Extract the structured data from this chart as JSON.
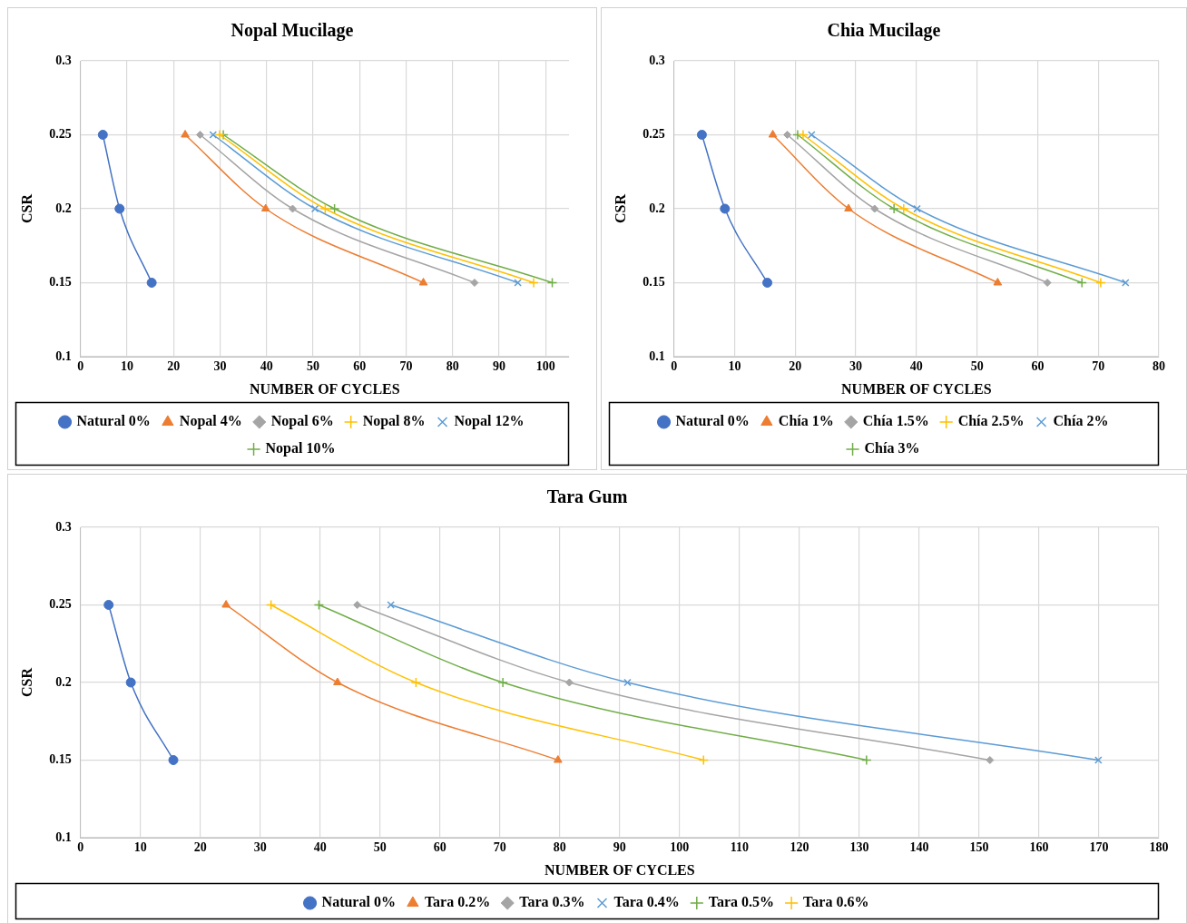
{
  "chart_data": [
    {
      "type": "line",
      "title": "Nopal Mucilage",
      "xlabel": "NUMBER OF CYCLES",
      "ylabel": "CSR",
      "xlim": [
        0,
        105
      ],
      "xticks": [
        0,
        10,
        20,
        30,
        40,
        50,
        60,
        70,
        80,
        90,
        100
      ],
      "ylim": [
        0.1,
        0.3
      ],
      "yticks": [
        0.1,
        0.15,
        0.2,
        0.25,
        0.3
      ],
      "grid": true,
      "legend": "bottom",
      "series": [
        {
          "name": "Natural 0%",
          "color": "#4472c4",
          "marker": "circle",
          "x": [
            4.8,
            8.4,
            15.3
          ],
          "values": [
            0.25,
            0.2,
            0.15
          ]
        },
        {
          "name": "Nopal 4%",
          "color": "#ed7d31",
          "marker": "triangle",
          "x": [
            22.5,
            39.8,
            73.7
          ],
          "values": [
            0.25,
            0.2,
            0.15
          ]
        },
        {
          "name": "Nopal 6%",
          "color": "#a5a5a5",
          "marker": "diamond",
          "x": [
            25.7,
            45.6,
            84.7
          ],
          "values": [
            0.25,
            0.2,
            0.15
          ]
        },
        {
          "name": "Nopal 8%",
          "color": "#ffc000",
          "marker": "cross",
          "x": [
            29.9,
            52.6,
            97.4
          ],
          "values": [
            0.25,
            0.2,
            0.15
          ]
        },
        {
          "name": "Nopal 12%",
          "color": "#5b9bd5",
          "marker": "x",
          "x": [
            28.5,
            50.4,
            94
          ],
          "values": [
            0.25,
            0.2,
            0.15
          ]
        },
        {
          "name": "Nopal 10%",
          "color": "#70ad47",
          "marker": "cross",
          "x": [
            30.7,
            54.6,
            101.4
          ],
          "values": [
            0.25,
            0.2,
            0.15
          ]
        }
      ]
    },
    {
      "type": "line",
      "title": "Chia Mucilage",
      "xlabel": "NUMBER OF CYCLES",
      "ylabel": "CSR",
      "xlim": [
        0,
        80
      ],
      "xticks": [
        0,
        10,
        20,
        30,
        40,
        50,
        60,
        70,
        80
      ],
      "ylim": [
        0.1,
        0.3
      ],
      "yticks": [
        0.1,
        0.15,
        0.2,
        0.25,
        0.3
      ],
      "grid": true,
      "legend": "bottom",
      "series": [
        {
          "name": "Natural 0%",
          "color": "#4472c4",
          "marker": "circle",
          "x": [
            4.6,
            8.4,
            15.4
          ],
          "values": [
            0.25,
            0.2,
            0.15
          ]
        },
        {
          "name": "Chía 1%",
          "color": "#ed7d31",
          "marker": "triangle",
          "x": [
            16.3,
            28.8,
            53.4
          ],
          "values": [
            0.25,
            0.2,
            0.15
          ]
        },
        {
          "name": "Chía 1.5%",
          "color": "#a5a5a5",
          "marker": "diamond",
          "x": [
            18.7,
            33.1,
            61.6
          ],
          "values": [
            0.25,
            0.2,
            0.15
          ]
        },
        {
          "name": "Chía 2.5%",
          "color": "#ffc000",
          "marker": "cross",
          "x": [
            21.3,
            37.9,
            70.4
          ],
          "values": [
            0.25,
            0.2,
            0.15
          ]
        },
        {
          "name": "Chía 2%",
          "color": "#5b9bd5",
          "marker": "x",
          "x": [
            22.7,
            40.1,
            74.5
          ],
          "values": [
            0.25,
            0.2,
            0.15
          ]
        },
        {
          "name": "Chía 3%",
          "color": "#70ad47",
          "marker": "cross",
          "x": [
            20.4,
            36.3,
            67.3
          ],
          "values": [
            0.25,
            0.2,
            0.15
          ]
        }
      ]
    },
    {
      "type": "line",
      "title": "Tara Gum",
      "xlabel": "NUMBER OF CYCLES",
      "ylabel": "CSR",
      "xlim": [
        0,
        180
      ],
      "xticks": [
        0,
        10,
        20,
        30,
        40,
        50,
        60,
        70,
        80,
        90,
        100,
        110,
        120,
        130,
        140,
        150,
        160,
        170,
        180
      ],
      "ylim": [
        0.1,
        0.3
      ],
      "yticks": [
        0.1,
        0.15,
        0.2,
        0.25,
        0.3
      ],
      "grid": true,
      "legend": "bottom",
      "series": [
        {
          "name": "Natural 0%",
          "color": "#4472c4",
          "marker": "circle",
          "x": [
            4.7,
            8.4,
            15.5
          ],
          "values": [
            0.25,
            0.2,
            0.15
          ]
        },
        {
          "name": "Tara 0.2%",
          "color": "#ed7d31",
          "marker": "triangle",
          "x": [
            24.3,
            42.9,
            79.7
          ],
          "values": [
            0.25,
            0.2,
            0.15
          ]
        },
        {
          "name": "Tara 0.3%",
          "color": "#a5a5a5",
          "marker": "diamond",
          "x": [
            46.2,
            81.6,
            151.8
          ],
          "values": [
            0.25,
            0.2,
            0.15
          ]
        },
        {
          "name": "Tara 0.4%",
          "color": "#5b9bd5",
          "marker": "x",
          "x": [
            51.8,
            91.3,
            169.9
          ],
          "values": [
            0.25,
            0.2,
            0.15
          ]
        },
        {
          "name": "Tara 0.5%",
          "color": "#70ad47",
          "marker": "cross",
          "x": [
            39.8,
            70.5,
            131.2
          ],
          "values": [
            0.25,
            0.2,
            0.15
          ]
        },
        {
          "name": "Tara 0.6%",
          "color": "#ffc000",
          "marker": "cross",
          "x": [
            31.8,
            56,
            104
          ],
          "values": [
            0.25,
            0.2,
            0.15
          ]
        }
      ]
    }
  ]
}
